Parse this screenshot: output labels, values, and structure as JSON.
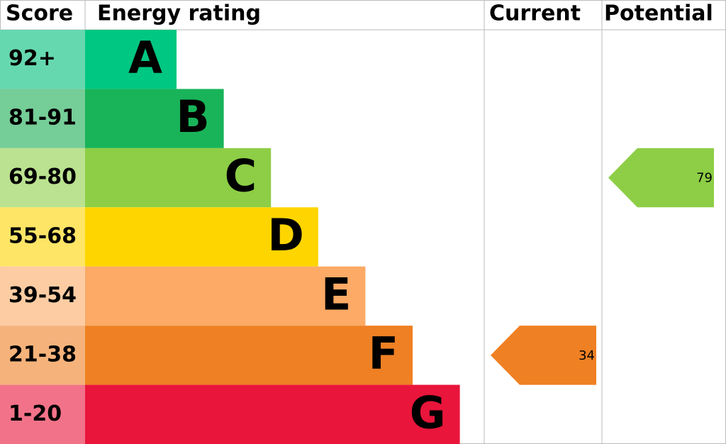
{
  "header": {
    "score": "Score",
    "rating": "Energy rating",
    "current": "Current",
    "potential": "Potential"
  },
  "bands": [
    {
      "score": "92+",
      "letter": "A",
      "color": "#00c781",
      "light": "#66d8b0"
    },
    {
      "score": "81-91",
      "letter": "B",
      "color": "#19b459",
      "light": "#75cd97"
    },
    {
      "score": "69-80",
      "letter": "C",
      "color": "#8dce46",
      "light": "#bbe290"
    },
    {
      "score": "55-68",
      "letter": "D",
      "color": "#ffd500",
      "light": "#ffe566"
    },
    {
      "score": "39-54",
      "letter": "E",
      "color": "#fcaa65",
      "light": "#fdcca3"
    },
    {
      "score": "21-38",
      "letter": "F",
      "color": "#ef8023",
      "light": "#f5b37b"
    },
    {
      "score": "1-20",
      "letter": "G",
      "color": "#e9153b",
      "light": "#f27389"
    }
  ],
  "current": 34,
  "potential": 79
}
